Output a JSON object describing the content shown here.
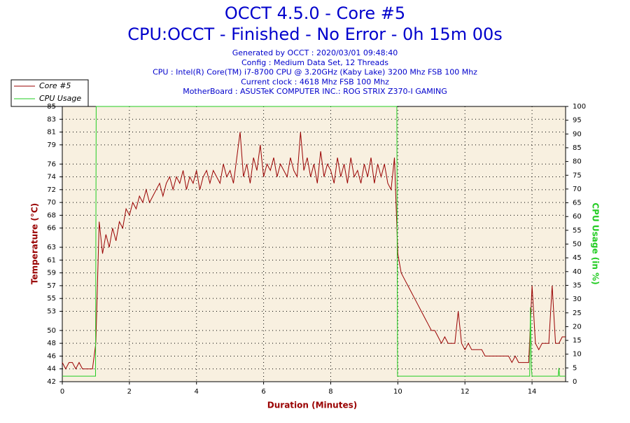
{
  "chart_data": {
    "type": "line",
    "title": "OCCT 4.5.0 - Core #5",
    "subtitle": "CPU:OCCT - Finished - No Error - 0h 15m 00s",
    "info": [
      "Generated by OCCT : 2020/03/01 09:48:40",
      "Config : Medium Data Set, 12 Threads",
      "CPU : Intel(R) Core(TM) i7-8700 CPU @ 3.20GHz (Kaby Lake) 3200 Mhz FSB 100 Mhz",
      "Current clock : 4618 Mhz FSB 100 Mhz",
      "MotherBoard : ASUSTeK COMPUTER INC.: ROG STRIX Z370-I GAMING"
    ],
    "xlabel": "Duration (Minutes)",
    "ylabel": "Temperature (°C)",
    "y2label": "CPU Usage (in %)",
    "xlim": [
      0,
      15
    ],
    "xticks": [
      0,
      2,
      4,
      6,
      8,
      10,
      12,
      14
    ],
    "ylim": [
      42,
      85
    ],
    "yticks": [
      42,
      44,
      46,
      48,
      50,
      53,
      55,
      57,
      59,
      61,
      63,
      66,
      68,
      70,
      72,
      74,
      76,
      79,
      81,
      83,
      85
    ],
    "y2lim": [
      0,
      100
    ],
    "y2ticks": [
      0,
      5,
      10,
      15,
      20,
      25,
      30,
      35,
      40,
      45,
      50,
      55,
      60,
      65,
      70,
      75,
      80,
      85,
      90,
      95,
      100
    ],
    "grid": true,
    "legend": "top-left",
    "series": [
      {
        "name": "Core #5",
        "color": "#990000",
        "x": [
          0,
          0.1,
          0.2,
          0.3,
          0.4,
          0.5,
          0.6,
          0.7,
          0.8,
          0.9,
          1,
          1.1,
          1.2,
          1.3,
          1.4,
          1.5,
          1.6,
          1.7,
          1.8,
          1.9,
          2,
          2.1,
          2.2,
          2.3,
          2.4,
          2.5,
          2.6,
          2.7,
          2.8,
          2.9,
          3,
          3.1,
          3.2,
          3.3,
          3.4,
          3.5,
          3.6,
          3.7,
          3.8,
          3.9,
          4,
          4.1,
          4.2,
          4.3,
          4.4,
          4.5,
          4.6,
          4.7,
          4.8,
          4.9,
          5,
          5.1,
          5.2,
          5.3,
          5.4,
          5.5,
          5.6,
          5.7,
          5.8,
          5.9,
          6,
          6.1,
          6.2,
          6.3,
          6.4,
          6.5,
          6.6,
          6.7,
          6.8,
          6.9,
          7,
          7.1,
          7.2,
          7.3,
          7.4,
          7.5,
          7.6,
          7.7,
          7.8,
          7.9,
          8,
          8.1,
          8.2,
          8.3,
          8.4,
          8.5,
          8.6,
          8.7,
          8.8,
          8.9,
          9,
          9.1,
          9.2,
          9.3,
          9.4,
          9.5,
          9.6,
          9.7,
          9.8,
          9.9,
          10,
          10.1,
          10.2,
          10.3,
          10.4,
          10.5,
          10.6,
          10.7,
          10.8,
          10.9,
          11,
          11.1,
          11.2,
          11.3,
          11.4,
          11.5,
          11.6,
          11.7,
          11.8,
          11.9,
          12,
          12.1,
          12.2,
          12.3,
          12.4,
          12.5,
          12.6,
          12.7,
          12.8,
          12.9,
          13,
          13.1,
          13.2,
          13.3,
          13.4,
          13.5,
          13.6,
          13.7,
          13.8,
          13.9,
          14,
          14.1,
          14.2,
          14.3,
          14.4,
          14.5,
          14.6,
          14.7,
          14.8,
          14.9,
          15
        ],
        "values": [
          45,
          44,
          45,
          45,
          44,
          45,
          44,
          44,
          44,
          44,
          48,
          67,
          62,
          65,
          63,
          66,
          64,
          67,
          66,
          69,
          68,
          70,
          69,
          71,
          70,
          72,
          70,
          71,
          72,
          73,
          71,
          73,
          74,
          72,
          74,
          73,
          75,
          72,
          74,
          73,
          75,
          72,
          74,
          75,
          73,
          75,
          74,
          73,
          76,
          74,
          75,
          73,
          77,
          81,
          74,
          76,
          73,
          77,
          75,
          79,
          74,
          76,
          75,
          77,
          74,
          76,
          75,
          74,
          77,
          75,
          74,
          81,
          75,
          77,
          74,
          76,
          73,
          78,
          74,
          76,
          75,
          73,
          77,
          74,
          76,
          73,
          77,
          74,
          75,
          73,
          76,
          74,
          77,
          73,
          76,
          74,
          76,
          73,
          72,
          77,
          62,
          59,
          58,
          57,
          56,
          55,
          54,
          53,
          52,
          51,
          50,
          50,
          49,
          48,
          49,
          48,
          48,
          48,
          53,
          48,
          47,
          48,
          47,
          47,
          47,
          47,
          46,
          46,
          46,
          46,
          46,
          46,
          46,
          46,
          45,
          46,
          45,
          45,
          45,
          45,
          57,
          48,
          47,
          48,
          48,
          48,
          57,
          48,
          48,
          49,
          49
        ]
      },
      {
        "name": "CPU Usage",
        "color": "#22cc22",
        "axis": "y2",
        "x": [
          0,
          0.99,
          1.01,
          9.97,
          9.99,
          13.93,
          13.95,
          13.98,
          14,
          14.78,
          14.8,
          14.82,
          15
        ],
        "values": [
          2,
          2,
          100,
          100,
          2,
          2,
          27,
          5,
          2,
          2,
          5,
          2,
          2
        ]
      }
    ]
  }
}
